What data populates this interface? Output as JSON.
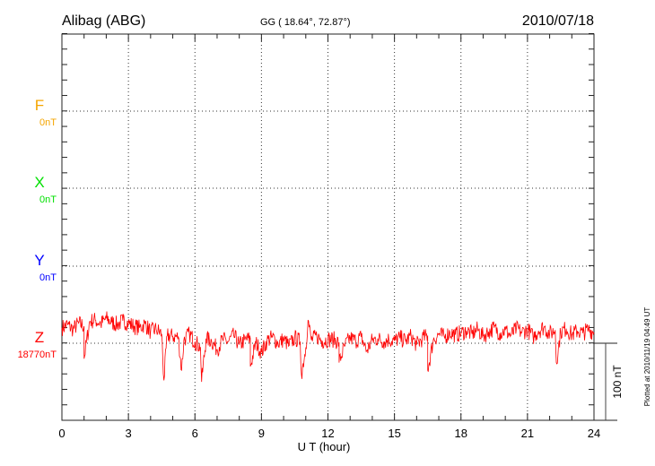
{
  "header": {
    "station": "Alibag (ABG)",
    "coords": "GG ( 18.64°,  72.87°)",
    "date": "2010/07/18"
  },
  "footer": {
    "plotted_at": "Plotted at 2010/11/19 04:49 UT"
  },
  "scale_bar": {
    "label": "100 nT",
    "value_nT": 100
  },
  "chart_data": {
    "type": "line",
    "xlabel": "U T (hour)",
    "xlim": [
      0,
      24
    ],
    "xticks": [
      0,
      3,
      6,
      9,
      12,
      15,
      18,
      21,
      24
    ],
    "xtick_labels": [
      "0",
      "3",
      "6",
      "9",
      "12",
      "15",
      "18",
      "21",
      "24"
    ],
    "grid": true,
    "channels": [
      {
        "name": "F",
        "baseline_label": "0nT",
        "color": "#f5a500",
        "has_data": false
      },
      {
        "name": "X",
        "baseline_label": "0nT",
        "color": "#00e000",
        "has_data": false
      },
      {
        "name": "Y",
        "baseline_label": "0nT",
        "color": "#0000ff",
        "has_data": false
      },
      {
        "name": "Z",
        "baseline_label": "18770nT",
        "color": "#ff0000",
        "has_data": true
      }
    ],
    "series": [
      {
        "name": "Z",
        "units": "nT relative to 18770 nT",
        "x_step_hours": 0.25,
        "values": [
          20,
          24,
          18,
          26,
          22,
          28,
          30,
          25,
          32,
          27,
          24,
          29,
          26,
          22,
          20,
          25,
          15,
          18,
          12,
          10,
          9,
          8,
          4,
          12,
          2,
          -5,
          6,
          3,
          -8,
          5,
          2,
          10,
          -2,
          4,
          6,
          1,
          -12,
          3,
          8,
          0,
          5,
          -3,
          7,
          2,
          -6,
          4,
          9,
          3,
          5,
          5,
          1,
          -4,
          7,
          3,
          8,
          -10,
          4,
          6,
          2,
          5,
          3,
          7,
          3,
          9,
          -2,
          6,
          10,
          4,
          12,
          8,
          14,
          11,
          13,
          16,
          12,
          18,
          9,
          15,
          20,
          13,
          17,
          10,
          19,
          14,
          18,
          8,
          16,
          21,
          12,
          17,
          15,
          19,
          11,
          16,
          13,
          18,
          14
        ],
        "spikes": [
          [
            1.0,
            -20
          ],
          [
            4.6,
            -48
          ],
          [
            5.4,
            -35
          ],
          [
            6.3,
            -50
          ],
          [
            8.5,
            -30
          ],
          [
            10.8,
            -40
          ],
          [
            11.1,
            30
          ],
          [
            12.5,
            -25
          ],
          [
            16.5,
            -35
          ],
          [
            22.3,
            -25
          ]
        ]
      }
    ]
  }
}
